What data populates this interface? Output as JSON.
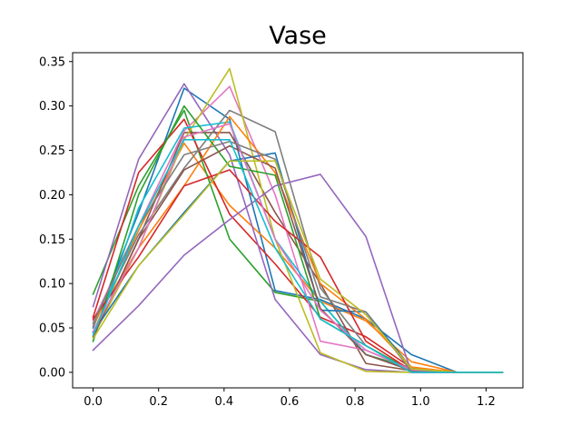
{
  "chart_data": {
    "type": "line",
    "title": "Vase",
    "xlabel": "",
    "ylabel": "",
    "xlim": [
      -0.0625,
      1.3125
    ],
    "ylim": [
      -0.0175,
      0.36
    ],
    "xticks": [
      0.0,
      0.2,
      0.4,
      0.6,
      0.8,
      1.0,
      1.2
    ],
    "xtick_labels": [
      "0.0",
      "0.2",
      "0.4",
      "0.6",
      "0.8",
      "1.0",
      "1.2"
    ],
    "yticks": [
      0.0,
      0.05,
      0.1,
      0.15,
      0.2,
      0.25,
      0.3,
      0.35
    ],
    "ytick_labels": [
      "0.00",
      "0.05",
      "0.10",
      "0.15",
      "0.20",
      "0.25",
      "0.30",
      "0.35"
    ],
    "grid": false,
    "legend": "none",
    "x": [
      0.0,
      0.139,
      0.278,
      0.417,
      0.556,
      0.694,
      0.833,
      0.972,
      1.111,
      1.25
    ],
    "series": [
      {
        "color": "#1f77b4",
        "values": [
          0.05,
          0.18,
          0.32,
          0.285,
          0.092,
          0.082,
          0.06,
          0.02,
          0.0,
          0.0
        ]
      },
      {
        "color": "#ff7f0e",
        "values": [
          0.045,
          0.16,
          0.258,
          0.188,
          0.14,
          0.08,
          0.058,
          0.012,
          0.0,
          0.0
        ]
      },
      {
        "color": "#2ca02c",
        "values": [
          0.088,
          0.21,
          0.295,
          0.15,
          0.09,
          0.08,
          0.02,
          0.005,
          0.0,
          0.0
        ]
      },
      {
        "color": "#d62728",
        "values": [
          0.062,
          0.225,
          0.285,
          0.178,
          0.122,
          0.062,
          0.04,
          0.005,
          0.0,
          0.0
        ]
      },
      {
        "color": "#9467bd",
        "values": [
          0.074,
          0.24,
          0.325,
          0.245,
          0.082,
          0.02,
          0.003,
          0.0,
          0.0,
          0.0
        ]
      },
      {
        "color": "#8c564b",
        "values": [
          0.04,
          0.15,
          0.27,
          0.27,
          0.18,
          0.1,
          0.01,
          0.002,
          0.0,
          0.0
        ]
      },
      {
        "color": "#e377c2",
        "values": [
          0.058,
          0.165,
          0.272,
          0.322,
          0.2,
          0.035,
          0.025,
          0.004,
          0.0,
          0.0
        ]
      },
      {
        "color": "#7f7f7f",
        "values": [
          0.052,
          0.155,
          0.23,
          0.295,
          0.271,
          0.095,
          0.03,
          0.002,
          0.0,
          0.0
        ]
      },
      {
        "color": "#bcbd22",
        "values": [
          0.04,
          0.14,
          0.262,
          0.342,
          0.15,
          0.022,
          0.001,
          0.0,
          0.0,
          0.0
        ]
      },
      {
        "color": "#17becf",
        "values": [
          0.035,
          0.185,
          0.275,
          0.282,
          0.15,
          0.08,
          0.02,
          0.003,
          0.0,
          0.0
        ]
      },
      {
        "color": "#1f77b4",
        "values": [
          0.045,
          0.12,
          0.18,
          0.238,
          0.247,
          0.07,
          0.068,
          0.005,
          0.0,
          0.0
        ]
      },
      {
        "color": "#ff7f0e",
        "values": [
          0.055,
          0.14,
          0.21,
          0.288,
          0.225,
          0.1,
          0.06,
          0.006,
          0.0,
          0.0
        ]
      },
      {
        "color": "#2ca02c",
        "values": [
          0.035,
          0.2,
          0.3,
          0.232,
          0.222,
          0.06,
          0.03,
          0.002,
          0.0,
          0.0
        ]
      },
      {
        "color": "#d62728",
        "values": [
          0.06,
          0.13,
          0.21,
          0.228,
          0.17,
          0.13,
          0.035,
          0.002,
          0.0,
          0.0
        ]
      },
      {
        "color": "#9467bd",
        "values": [
          0.025,
          0.075,
          0.132,
          0.172,
          0.21,
          0.223,
          0.153,
          0.0,
          0.0,
          0.0
        ]
      },
      {
        "color": "#8c564b",
        "values": [
          0.04,
          0.15,
          0.228,
          0.255,
          0.23,
          0.072,
          0.02,
          0.002,
          0.0,
          0.0
        ]
      },
      {
        "color": "#e377c2",
        "values": [
          0.046,
          0.14,
          0.265,
          0.28,
          0.15,
          0.07,
          0.025,
          0.003,
          0.0,
          0.0
        ]
      },
      {
        "color": "#7f7f7f",
        "values": [
          0.055,
          0.165,
          0.245,
          0.26,
          0.24,
          0.085,
          0.068,
          0.001,
          0.0,
          0.0
        ]
      },
      {
        "color": "#bcbd22",
        "values": [
          0.038,
          0.12,
          0.178,
          0.238,
          0.238,
          0.105,
          0.065,
          0.004,
          0.0,
          0.0
        ]
      },
      {
        "color": "#17becf",
        "values": [
          0.042,
          0.165,
          0.262,
          0.262,
          0.14,
          0.06,
          0.03,
          0.0,
          0.0,
          0.0
        ]
      }
    ]
  }
}
